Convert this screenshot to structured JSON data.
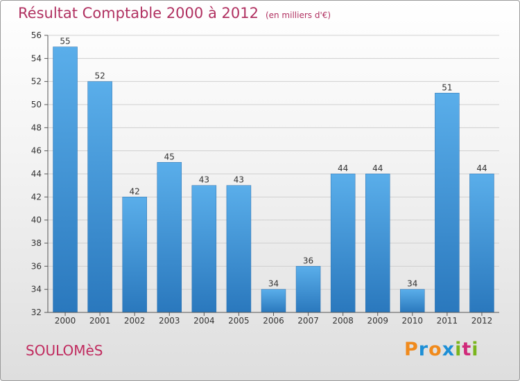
{
  "chart_data": {
    "type": "bar",
    "title": "Résultat Comptable 2000 à 2012",
    "subtitle": "(en milliers d'€)",
    "categories": [
      "2000",
      "2001",
      "2002",
      "2003",
      "2004",
      "2005",
      "2006",
      "2007",
      "2008",
      "2009",
      "2010",
      "2011",
      "2012"
    ],
    "values": [
      55,
      52,
      42,
      45,
      43,
      43,
      34,
      36,
      44,
      44,
      34,
      51,
      44
    ],
    "ylim": [
      32,
      56
    ],
    "yticks": [
      32,
      34,
      36,
      38,
      40,
      42,
      44,
      46,
      48,
      50,
      52,
      54,
      56
    ],
    "grid": true,
    "bar_color": "#3a8fd6"
  },
  "location": "SOULOMèS",
  "logo": {
    "text": "Proxiti",
    "letters": [
      "P",
      "r",
      "o",
      "x",
      "i",
      "t",
      "i"
    ],
    "colors": [
      "#f08a1c",
      "#1d8fd6",
      "#f08a1c",
      "#1d8fd6",
      "#7ab51d",
      "#d02a7a",
      "#7ab51d"
    ]
  }
}
